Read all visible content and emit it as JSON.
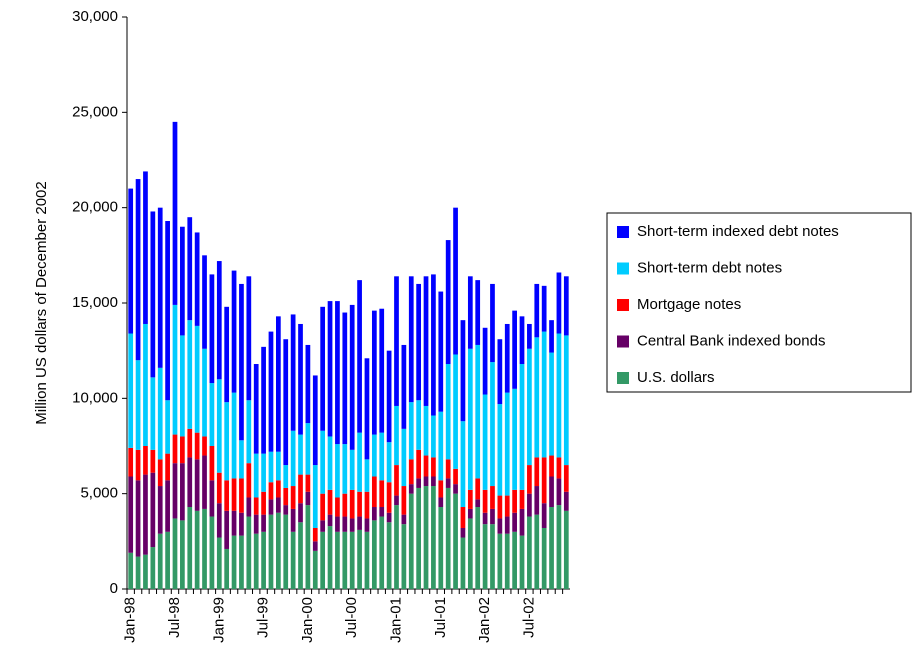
{
  "chart_data": {
    "type": "stacked-bar",
    "y_label": "Million US dollars of December 2002",
    "categories": [
      "Jan-98",
      null,
      null,
      null,
      null,
      null,
      "Jul-98",
      null,
      null,
      null,
      null,
      null,
      "Jan-99",
      null,
      null,
      null,
      null,
      null,
      "Jul-99",
      null,
      null,
      null,
      null,
      null,
      "Jan-00",
      null,
      null,
      null,
      null,
      null,
      "Jul-00",
      null,
      null,
      null,
      null,
      null,
      "Jan-01",
      null,
      null,
      null,
      null,
      null,
      "Jul-01",
      null,
      null,
      null,
      null,
      null,
      "Jan-02",
      null,
      null,
      null,
      null,
      null,
      "Jul-02",
      null,
      null,
      null,
      null,
      null
    ],
    "series": [
      {
        "name": "U.S. dollars",
        "color": "#339966",
        "values": [
          1900,
          1700,
          1800,
          2200,
          2900,
          3000,
          3700,
          3600,
          4300,
          4100,
          4200,
          3800,
          2700,
          2100,
          2800,
          2800,
          3800,
          2900,
          3000,
          3900,
          4000,
          3900,
          3000,
          3500,
          4400,
          2000,
          3000,
          3300,
          3000,
          3000,
          3000,
          3100,
          3000,
          3600,
          3800,
          3500,
          4400,
          3400,
          5000,
          5300,
          5400,
          5400,
          4300,
          5300,
          5000,
          2700,
          3700,
          4300,
          3400,
          3400,
          2900,
          2900,
          3000,
          2800,
          3800,
          3900,
          3200,
          4300,
          4400,
          4100
        ]
      },
      {
        "name": "Central Bank indexed bonds",
        "color": "#660066",
        "values": [
          4000,
          4000,
          4200,
          3900,
          2500,
          2700,
          2900,
          3000,
          2600,
          2700,
          2800,
          1900,
          1800,
          2000,
          1300,
          1200,
          1000,
          1000,
          900,
          800,
          800,
          500,
          1200,
          1000,
          700,
          500,
          600,
          600,
          800,
          800,
          700,
          700,
          700,
          700,
          500,
          500,
          500,
          500,
          500,
          500,
          500,
          500,
          500,
          500,
          500,
          500,
          500,
          400,
          600,
          800,
          800,
          900,
          1000,
          1400,
          1200,
          1500,
          1300,
          1600,
          1400,
          1000
        ]
      },
      {
        "name": "Mortgage notes",
        "color": "#ff0000",
        "values": [
          1500,
          1600,
          1500,
          1200,
          1400,
          1400,
          1500,
          1400,
          1500,
          1400,
          1000,
          1800,
          1600,
          1600,
          1700,
          1800,
          1800,
          900,
          1200,
          900,
          900,
          900,
          1200,
          1500,
          900,
          700,
          1400,
          1300,
          1000,
          1200,
          1500,
          1300,
          1400,
          1600,
          1400,
          1600,
          1600,
          1500,
          1300,
          1500,
          1100,
          1000,
          900,
          1000,
          800,
          1100,
          1000,
          1100,
          1200,
          1200,
          1200,
          1100,
          1200,
          1000,
          1500,
          1500,
          2400,
          1100,
          1100,
          1400
        ]
      },
      {
        "name": "Short-term debt notes",
        "color": "#00ccff",
        "values": [
          6000,
          4700,
          6400,
          3800,
          4800,
          2800,
          6800,
          5300,
          5700,
          5600,
          4600,
          3300,
          4900,
          4100,
          4500,
          2000,
          3300,
          2300,
          2000,
          1600,
          1500,
          1200,
          2900,
          2100,
          2700,
          3300,
          3300,
          2800,
          2800,
          2600,
          2100,
          3100,
          1700,
          2200,
          2500,
          2100,
          3100,
          3000,
          3000,
          2600,
          2600,
          2200,
          3600,
          5000,
          6000,
          4500,
          7400,
          7000,
          5000,
          6500,
          4800,
          5400,
          5300,
          6600,
          6100,
          6300,
          6600,
          5400,
          6500,
          6800
        ]
      },
      {
        "name": "Short-term indexed debt notes",
        "color": "#0000ff",
        "values": [
          7600,
          9500,
          8000,
          8700,
          8400,
          9400,
          9600,
          5700,
          5400,
          4900,
          4900,
          5700,
          6200,
          5000,
          6400,
          8200,
          6500,
          4700,
          5600,
          6300,
          7100,
          6600,
          6100,
          5800,
          4100,
          4700,
          6500,
          7100,
          7500,
          6900,
          7600,
          8000,
          5300,
          6500,
          6500,
          4800,
          6800,
          4400,
          6600,
          6100,
          6800,
          7400,
          6300,
          6500,
          7700,
          5300,
          3800,
          3400,
          3500,
          4100,
          3400,
          3600,
          4100,
          2500,
          1300,
          2800,
          2400,
          1700,
          3200,
          3100
        ]
      }
    ],
    "ylim": [
      0,
      30000
    ],
    "yticks": [
      0,
      {
        "value": 5000,
        "label": "5,000"
      },
      {
        "value": 10000,
        "label": "10,000"
      },
      {
        "value": 15000,
        "label": "15,000"
      },
      {
        "value": 20000,
        "label": "20,000"
      },
      {
        "value": 25000,
        "label": "25,000"
      },
      {
        "value": 30000,
        "label": "30,000"
      }
    ],
    "legend": "right"
  }
}
